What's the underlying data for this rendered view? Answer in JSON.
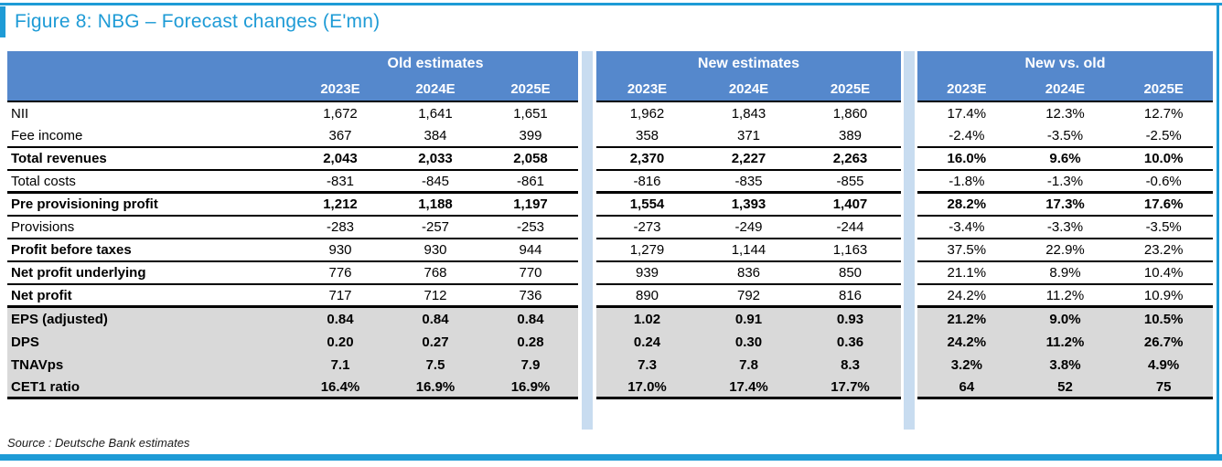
{
  "title": "Figure 8: NBG – Forecast changes (E'mn)",
  "source": "Source : Deutsche Bank estimates",
  "colors": {
    "accent_cyan": "#1e9bd6",
    "header_blue": "#5588cc",
    "gap_light_blue": "#c8dcf0",
    "gray_row": "#d9d9d9"
  },
  "table": {
    "groups": [
      {
        "label": "Old estimates",
        "years": [
          "2023E",
          "2024E",
          "2025E"
        ]
      },
      {
        "label": "New estimates",
        "years": [
          "2023E",
          "2024E",
          "2025E"
        ]
      },
      {
        "label": "New vs. old",
        "years": [
          "2023E",
          "2024E",
          "2025E"
        ]
      }
    ],
    "rows": [
      {
        "label": "NII",
        "label_bold": false,
        "value_bold": false,
        "gray": false,
        "border": "none",
        "old": [
          "1,672",
          "1,641",
          "1,651"
        ],
        "new": [
          "1,962",
          "1,843",
          "1,860"
        ],
        "delta": [
          "17.4%",
          "12.3%",
          "12.7%"
        ]
      },
      {
        "label": "Fee income",
        "label_bold": false,
        "value_bold": false,
        "gray": false,
        "border": "thin",
        "old": [
          "367",
          "384",
          "399"
        ],
        "new": [
          "358",
          "371",
          "389"
        ],
        "delta": [
          "-2.4%",
          "-3.5%",
          "-2.5%"
        ]
      },
      {
        "label": "Total revenues",
        "label_bold": true,
        "value_bold": true,
        "gray": false,
        "border": "thin",
        "old": [
          "2,043",
          "2,033",
          "2,058"
        ],
        "new": [
          "2,370",
          "2,227",
          "2,263"
        ],
        "delta": [
          "16.0%",
          "9.6%",
          "10.0%"
        ]
      },
      {
        "label": "Total costs",
        "label_bold": false,
        "value_bold": false,
        "gray": false,
        "border": "thick",
        "old": [
          "-831",
          "-845",
          "-861"
        ],
        "new": [
          "-816",
          "-835",
          "-855"
        ],
        "delta": [
          "-1.8%",
          "-1.3%",
          "-0.6%"
        ]
      },
      {
        "label": "Pre provisioning profit",
        "label_bold": true,
        "value_bold": true,
        "gray": false,
        "border": "thin",
        "old": [
          "1,212",
          "1,188",
          "1,197"
        ],
        "new": [
          "1,554",
          "1,393",
          "1,407"
        ],
        "delta": [
          "28.2%",
          "17.3%",
          "17.6%"
        ]
      },
      {
        "label": "Provisions",
        "label_bold": false,
        "value_bold": false,
        "gray": false,
        "border": "thin",
        "old": [
          "-283",
          "-257",
          "-253"
        ],
        "new": [
          "-273",
          "-249",
          "-244"
        ],
        "delta": [
          "-3.4%",
          "-3.3%",
          "-3.5%"
        ]
      },
      {
        "label": "Profit before taxes",
        "label_bold": true,
        "value_bold": false,
        "gray": false,
        "border": "thin",
        "old": [
          "930",
          "930",
          "944"
        ],
        "new": [
          "1,279",
          "1,144",
          "1,163"
        ],
        "delta": [
          "37.5%",
          "22.9%",
          "23.2%"
        ]
      },
      {
        "label": "Net profit underlying",
        "label_bold": true,
        "value_bold": false,
        "gray": false,
        "border": "thin",
        "old": [
          "776",
          "768",
          "770"
        ],
        "new": [
          "939",
          "836",
          "850"
        ],
        "delta": [
          "21.1%",
          "8.9%",
          "10.4%"
        ]
      },
      {
        "label": "Net profit",
        "label_bold": true,
        "value_bold": false,
        "gray": false,
        "border": "thick",
        "old": [
          "717",
          "712",
          "736"
        ],
        "new": [
          "890",
          "792",
          "816"
        ],
        "delta": [
          "24.2%",
          "11.2%",
          "10.9%"
        ]
      },
      {
        "label": "EPS (adjusted)",
        "label_bold": true,
        "value_bold": true,
        "gray": true,
        "border": "none",
        "old": [
          "0.84",
          "0.84",
          "0.84"
        ],
        "new": [
          "1.02",
          "0.91",
          "0.93"
        ],
        "delta": [
          "21.2%",
          "9.0%",
          "10.5%"
        ]
      },
      {
        "label": "DPS",
        "label_bold": true,
        "value_bold": true,
        "gray": true,
        "border": "none",
        "old": [
          "0.20",
          "0.27",
          "0.28"
        ],
        "new": [
          "0.24",
          "0.30",
          "0.36"
        ],
        "delta": [
          "24.2%",
          "11.2%",
          "26.7%"
        ]
      },
      {
        "label": "TNAVps",
        "label_bold": true,
        "value_bold": true,
        "gray": true,
        "border": "none",
        "old": [
          "7.1",
          "7.5",
          "7.9"
        ],
        "new": [
          "7.3",
          "7.8",
          "8.3"
        ],
        "delta": [
          "3.2%",
          "3.8%",
          "4.9%"
        ]
      },
      {
        "label": "CET1 ratio",
        "label_bold": true,
        "value_bold": true,
        "gray": true,
        "border": "thick",
        "old": [
          "16.4%",
          "16.9%",
          "16.9%"
        ],
        "new": [
          "17.0%",
          "17.4%",
          "17.7%"
        ],
        "delta": [
          "64",
          "52",
          "75"
        ]
      }
    ]
  }
}
